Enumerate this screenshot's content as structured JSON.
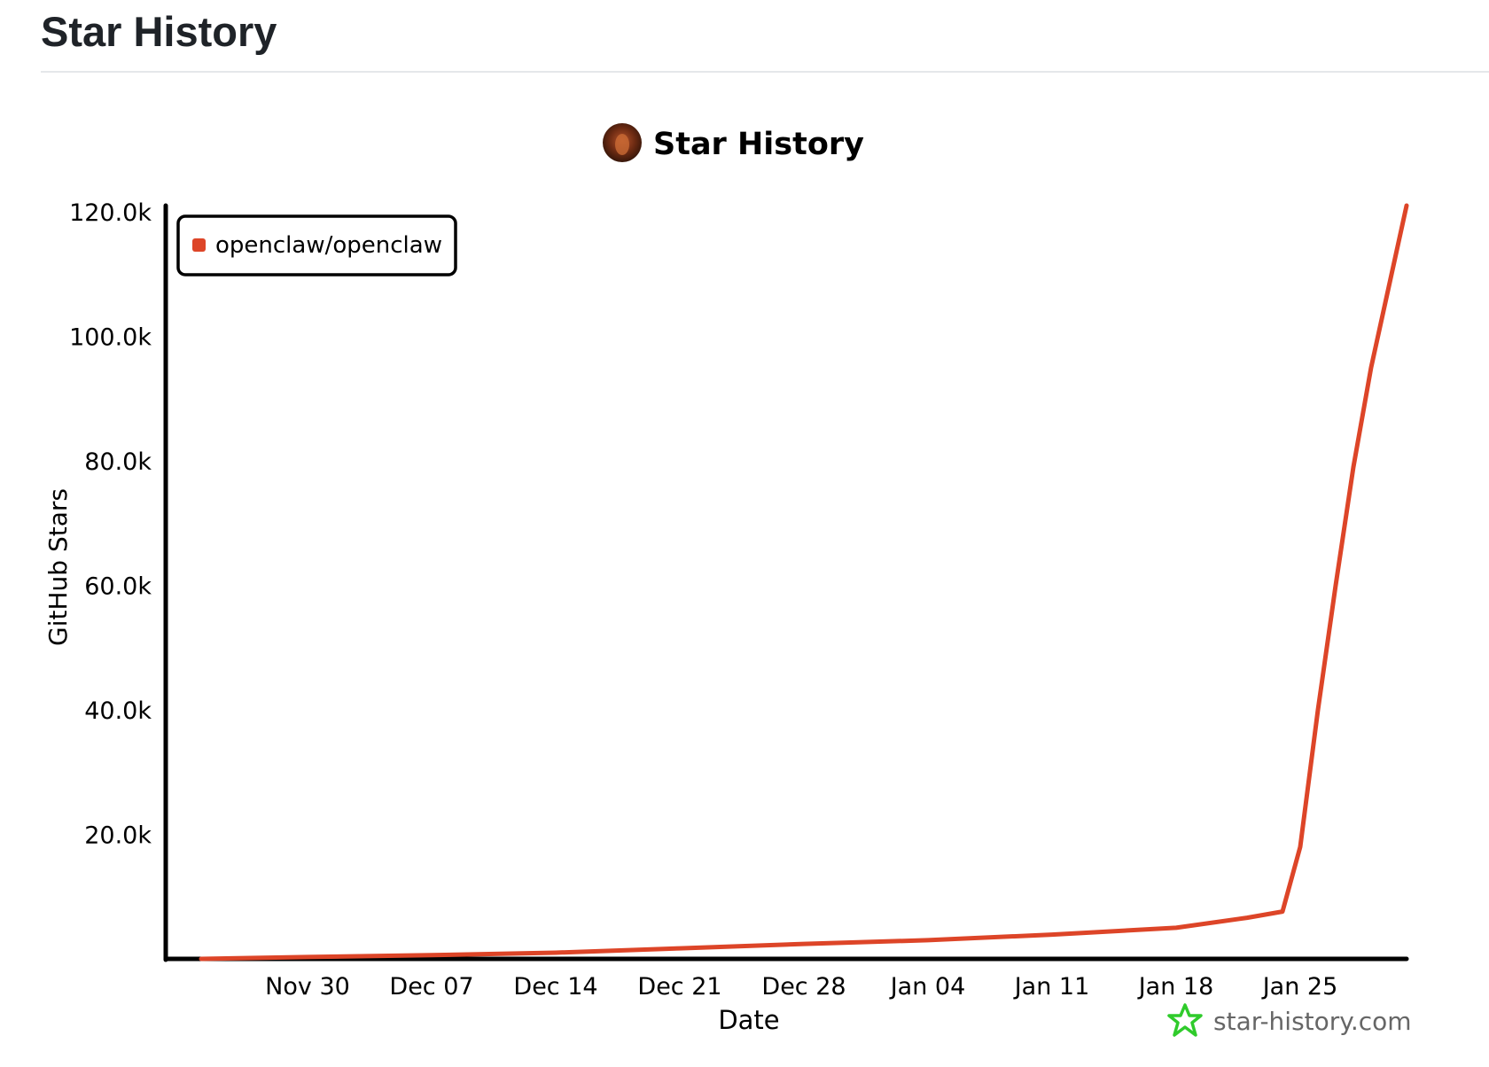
{
  "page": {
    "title": "Star History"
  },
  "chart_data": {
    "type": "line",
    "title": "Star History",
    "xlabel": "Date",
    "ylabel": "GitHub Stars",
    "watermark": "star-history.com",
    "legend_position": "top-left",
    "grid": false,
    "colors": {
      "series": "#dd4528",
      "axis": "#000000",
      "watermark_icon": "#2fcb2b"
    },
    "icons": {
      "title_avatar": "avatar-icon",
      "watermark": "star-history-logo-icon"
    },
    "x_range": [
      "2025-11-22",
      "2026-01-31"
    ],
    "ylim": [
      0,
      121000
    ],
    "x_ticks": [
      {
        "date": "2025-11-30",
        "label": "Nov 30"
      },
      {
        "date": "2025-12-07",
        "label": "Dec 07"
      },
      {
        "date": "2025-12-14",
        "label": "Dec 14"
      },
      {
        "date": "2025-12-21",
        "label": "Dec 21"
      },
      {
        "date": "2025-12-28",
        "label": "Dec 28"
      },
      {
        "date": "2026-01-04",
        "label": "Jan 04"
      },
      {
        "date": "2026-01-11",
        "label": "Jan 11"
      },
      {
        "date": "2026-01-18",
        "label": "Jan 18"
      },
      {
        "date": "2026-01-25",
        "label": "Jan 25"
      }
    ],
    "y_ticks": [
      {
        "value": 20000,
        "label": "20.0k"
      },
      {
        "value": 40000,
        "label": "40.0k"
      },
      {
        "value": 60000,
        "label": "60.0k"
      },
      {
        "value": 80000,
        "label": "80.0k"
      },
      {
        "value": 100000,
        "label": "100.0k"
      },
      {
        "value": 120000,
        "label": "120.0k"
      }
    ],
    "series": [
      {
        "name": "openclaw/openclaw",
        "points": [
          {
            "x": "2025-11-24",
            "y": 0
          },
          {
            "x": "2025-11-30",
            "y": 300
          },
          {
            "x": "2025-12-07",
            "y": 600
          },
          {
            "x": "2025-12-14",
            "y": 1000
          },
          {
            "x": "2025-12-21",
            "y": 1700
          },
          {
            "x": "2025-12-28",
            "y": 2400
          },
          {
            "x": "2026-01-04",
            "y": 3000
          },
          {
            "x": "2026-01-11",
            "y": 3900
          },
          {
            "x": "2026-01-18",
            "y": 5000
          },
          {
            "x": "2026-01-22",
            "y": 6600
          },
          {
            "x": "2026-01-24",
            "y": 7600
          },
          {
            "x": "2026-01-25",
            "y": 18000
          },
          {
            "x": "2026-01-26",
            "y": 40000
          },
          {
            "x": "2026-01-27",
            "y": 60000
          },
          {
            "x": "2026-01-28",
            "y": 79000
          },
          {
            "x": "2026-01-29",
            "y": 95000
          },
          {
            "x": "2026-01-30",
            "y": 108000
          },
          {
            "x": "2026-01-31",
            "y": 121000
          }
        ]
      }
    ]
  }
}
